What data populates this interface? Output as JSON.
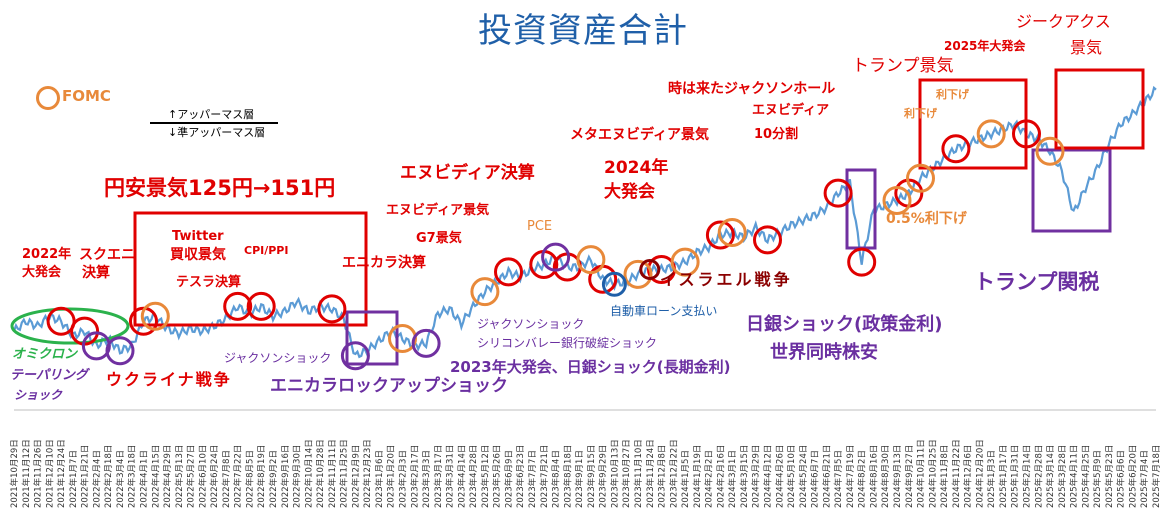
{
  "title": "投資資産合計",
  "legend": {
    "fomc": "FOMC",
    "upper": "↑アッパーマス層",
    "lower": "↓準アッパーマス層"
  },
  "colors": {
    "line": "#5b9bd5",
    "red": "#e00000",
    "purple": "#7030a0",
    "orange": "#e8893a",
    "blue": "#1f5fa8",
    "green": "#2bb24c",
    "dark_red": "#8b0000"
  },
  "annotations": {
    "a2022": "2022年",
    "a2022b": "大発会",
    "square": "スクエニ",
    "square2": "決算",
    "omicron": "オミクロン",
    "tapering": "テーパリング",
    "tapering2": "ショック",
    "ukraine": "ウクライナ戦争",
    "yen": "円安景気125円→151円",
    "twitter": "Twitter",
    "twitter2": "買収景気",
    "tesla": "テスラ決算",
    "cpi": "CPI/PPI",
    "jackson1": "ジャクソンショック",
    "enicara": "エニカラ決算",
    "enicara_lock": "エニカラロックアップショック",
    "g7": "G7景気",
    "nvda_boom": "エヌビディア景気",
    "nvda_earn": "エヌビディア決算",
    "pce": "PCE",
    "jackson2": "ジャクソンショック",
    "svb": "シリコンバレー銀行破綻ショック",
    "daihakkai2023": "2023年大発会、日銀ショック(長期金利)",
    "auto_loan": "自動車ローン支払い",
    "israel": "イスラエル戦争",
    "y2024": "2024年",
    "y2024b": "大発会",
    "meta": "メタエヌビディア景気",
    "nvda_split": "エヌビディア",
    "nvda_split2": "10分割",
    "jackson_hole": "時は来たジャクソンホール",
    "boj": "日銀ショック(政策金利)",
    "global": "世界同時株安",
    "rate_cut": "0.5%利下げ",
    "trump_boom": "トランプ景気",
    "daihakkai2025": "2025年大発会",
    "cut1": "利下げ",
    "cut2": "利下げ",
    "tariff": "トランプ関税",
    "zeekax": "ジークアクス",
    "zeekax2": "景気"
  },
  "chart_data": {
    "type": "line",
    "title": "投資資産合計",
    "x": [
      "2021年10月29日",
      "2021年11月12日",
      "2021年11月26日",
      "2021年12月10日",
      "2021年12月24日",
      "2022年1月7日",
      "2022年1月21日",
      "2022年2月4日",
      "2022年2月18日",
      "2022年3月4日",
      "2022年3月18日",
      "2022年4月1日",
      "2022年4月15日",
      "2022年4月29日",
      "2022年5月13日",
      "2022年5月27日",
      "2022年6月10日",
      "2022年6月24日",
      "2022年7月8日",
      "2022年7月22日",
      "2022年8月5日",
      "2022年8月19日",
      "2022年9月2日",
      "2022年9月16日",
      "2022年9月30日",
      "2022年10月14日",
      "2022年10月28日",
      "2022年11月11日",
      "2022年11月25日",
      "2022年12月9日",
      "2022年12月23日",
      "2023年1月6日",
      "2023年1月20日",
      "2023年2月3日",
      "2023年2月17日",
      "2023年3月3日",
      "2023年3月17日",
      "2023年3月31日",
      "2023年4月14日",
      "2023年4月28日",
      "2023年5月12日",
      "2023年5月26日",
      "2023年6月9日",
      "2023年6月23日",
      "2023年7月7日",
      "2023年7月21日",
      "2023年8月4日",
      "2023年8月18日",
      "2023年9月1日",
      "2023年9月15日",
      "2023年9月29日",
      "2023年10月13日",
      "2023年10月27日",
      "2023年11月10日",
      "2023年11月24日",
      "2023年12月8日",
      "2023年12月22日",
      "2024年1月5日",
      "2024年1月19日",
      "2024年2月2日",
      "2024年2月16日",
      "2024年3月1日",
      "2024年3月15日",
      "2024年3月29日",
      "2024年4月12日",
      "2024年4月26日",
      "2024年5月10日",
      "2024年5月24日",
      "2024年6月7日",
      "2024年6月21日",
      "2024年7月5日",
      "2024年7月19日",
      "2024年8月2日",
      "2024年8月16日",
      "2024年8月30日",
      "2024年9月13日",
      "2024年9月27日",
      "2024年10月11日",
      "2024年10月25日",
      "2024年11月8日",
      "2024年11月22日",
      "2024年12月6日",
      "2024年12月20日",
      "2025年1月3日",
      "2025年1月17日",
      "2025年1月31日",
      "2025年2月14日",
      "2025年2月28日",
      "2025年3月14日",
      "2025年3月28日",
      "2025年4月11日",
      "2025年4月25日",
      "2025年5月9日",
      "2025年5月23日",
      "2025年6月6日",
      "2025年6月20日",
      "2025年7月4日",
      "2025年7月18日"
    ],
    "values": [
      30,
      34,
      32,
      36,
      34,
      28,
      30,
      24,
      27,
      22,
      24,
      34,
      36,
      31,
      29,
      31,
      30,
      32,
      35,
      40,
      37,
      40,
      36,
      38,
      42,
      38,
      40,
      39,
      35,
      20,
      22,
      26,
      30,
      27,
      24,
      25,
      37,
      39,
      33,
      40,
      46,
      50,
      54,
      52,
      55,
      57,
      60,
      56,
      56,
      59,
      51,
      49,
      50,
      53,
      55,
      55,
      56,
      58,
      62,
      64,
      69,
      70,
      68,
      72,
      67,
      70,
      73,
      75,
      77,
      80,
      86,
      90,
      58,
      79,
      81,
      83,
      86,
      92,
      96,
      100,
      104,
      106,
      108,
      110,
      112,
      114,
      110,
      108,
      103,
      95,
      78,
      88,
      96,
      106,
      114,
      118,
      123,
      128
    ],
    "ylim": [
      0,
      140
    ]
  }
}
